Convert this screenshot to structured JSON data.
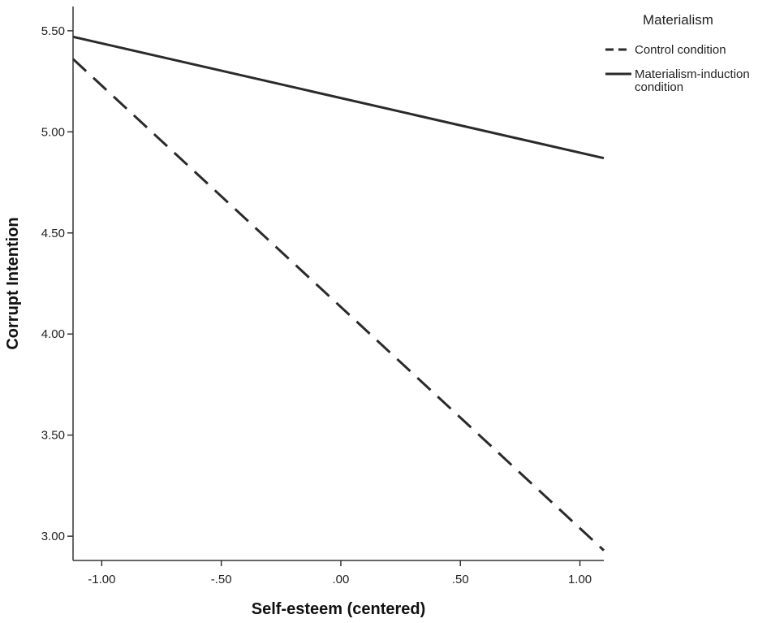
{
  "chart_data": {
    "type": "line",
    "xlabel": "Self-esteem (centered)",
    "ylabel": "Corrupt Intention",
    "xlim": [
      -1.12,
      1.1
    ],
    "ylim": [
      2.88,
      5.62
    ],
    "xticks": [
      -1.0,
      -0.5,
      0.0,
      0.5,
      1.0
    ],
    "xtick_labels": [
      "-1.00",
      "-.50",
      ".00",
      ".50",
      "1.00"
    ],
    "yticks": [
      3.0,
      3.5,
      4.0,
      4.5,
      5.0,
      5.5
    ],
    "ytick_labels": [
      "3.00",
      "3.50",
      "4.00",
      "4.50",
      "5.00",
      "5.50"
    ],
    "grid": false,
    "legend": {
      "title": "Materialism",
      "placement": "top-right",
      "entries": [
        {
          "lines": [
            "Control condition"
          ]
        },
        {
          "lines": [
            "Materialism-induction",
            "condition"
          ]
        }
      ]
    },
    "series": [
      {
        "name": "Control condition",
        "style": "dashed",
        "color": "#2a2a2a",
        "x": [
          -1.12,
          1.1
        ],
        "y": [
          5.36,
          2.93
        ]
      },
      {
        "name": "Materialism-induction condition",
        "style": "solid",
        "color": "#2a2a2a",
        "x": [
          -1.12,
          1.1
        ],
        "y": [
          5.47,
          4.87
        ]
      }
    ]
  }
}
